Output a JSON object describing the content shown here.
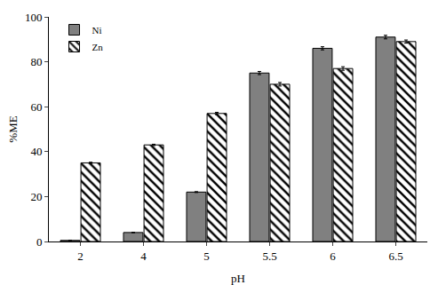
{
  "chart_data": {
    "type": "bar",
    "x_label": "pH",
    "y_label": "%ME",
    "categories": [
      "2",
      "4",
      "5",
      "5.5",
      "6",
      "6.5"
    ],
    "series": [
      {
        "name": "Ni",
        "color": "#808080",
        "marker": "solid",
        "values": [
          0.5,
          4,
          22,
          75,
          86,
          91
        ],
        "errors": [
          0.1,
          0.1,
          0.2,
          0.7,
          0.7,
          0.8
        ]
      },
      {
        "name": "Zn",
        "color": "#ffffff",
        "marker": "hatch",
        "values": [
          35,
          43,
          57,
          70,
          77,
          89
        ],
        "errors": [
          0.3,
          0.3,
          0.5,
          0.8,
          0.8,
          0.7
        ]
      }
    ],
    "ylim": [
      0,
      100
    ],
    "yticks": [
      0,
      20,
      40,
      60,
      80,
      100
    ],
    "grid": false,
    "legend": "upper left"
  }
}
